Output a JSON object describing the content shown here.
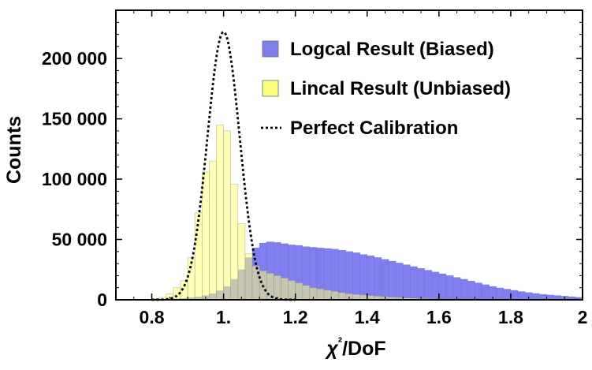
{
  "chart_data": {
    "type": "bar",
    "title": "",
    "xlabel": "χ²/DoF",
    "ylabel": "Counts",
    "xlim": [
      0.7,
      2.0
    ],
    "ylim": [
      0,
      240000
    ],
    "x_ticks": [
      0.8,
      1.0,
      1.2,
      1.4,
      1.6,
      1.8,
      2.0
    ],
    "x_tick_labels": [
      "0.8",
      "1.",
      "1.2",
      "1.4",
      "1.6",
      "1.8",
      "2"
    ],
    "y_ticks": [
      0,
      50000,
      100000,
      150000,
      200000
    ],
    "y_tick_labels": [
      "0",
      "50 000",
      "100 000",
      "150 000",
      "200 000"
    ],
    "bin_width": 0.02,
    "legend_position": "top-right",
    "colors": {
      "logcal": "#7f7fef",
      "lincal": "#ffff7f",
      "perfect": "#000000"
    },
    "series": [
      {
        "name": "Logcal Result (Biased)",
        "kind": "histogram",
        "x": [
          0.85,
          0.87,
          0.89,
          0.91,
          0.93,
          0.95,
          0.97,
          0.99,
          1.01,
          1.03,
          1.05,
          1.07,
          1.09,
          1.11,
          1.13,
          1.15,
          1.17,
          1.19,
          1.21,
          1.23,
          1.25,
          1.27,
          1.29,
          1.31,
          1.33,
          1.35,
          1.37,
          1.39,
          1.41,
          1.43,
          1.45,
          1.47,
          1.49,
          1.51,
          1.53,
          1.55,
          1.57,
          1.59,
          1.61,
          1.63,
          1.65,
          1.67,
          1.69,
          1.71,
          1.73,
          1.75,
          1.77,
          1.79,
          1.81,
          1.83,
          1.85,
          1.87,
          1.89,
          1.91,
          1.93,
          1.95,
          1.97,
          1.99
        ],
        "values": [
          500,
          800,
          1200,
          1800,
          2500,
          3500,
          5000,
          7500,
          11000,
          17000,
          25000,
          35000,
          43000,
          47000,
          48000,
          47500,
          46500,
          45500,
          45000,
          44000,
          43500,
          43000,
          42500,
          42000,
          41000,
          40000,
          39000,
          37500,
          36500,
          35000,
          33500,
          32000,
          30500,
          29000,
          27500,
          26000,
          24500,
          23000,
          21500,
          20000,
          18500,
          17000,
          15500,
          14000,
          12500,
          11000,
          9800,
          8800,
          7800,
          6800,
          6000,
          5200,
          4500,
          4000,
          3500,
          3000,
          2500,
          2000
        ]
      },
      {
        "name": "Lincal Result (Unbiased)",
        "kind": "histogram",
        "x": [
          0.81,
          0.83,
          0.85,
          0.87,
          0.89,
          0.91,
          0.93,
          0.95,
          0.97,
          0.99,
          1.01,
          1.03,
          1.05,
          1.07,
          1.09,
          1.11,
          1.13,
          1.15,
          1.17,
          1.19,
          1.21,
          1.23,
          1.25,
          1.27,
          1.29,
          1.31,
          1.33,
          1.35,
          1.37,
          1.39,
          1.41,
          1.43,
          1.45,
          1.47,
          1.49,
          1.51,
          1.53,
          1.55,
          1.57,
          1.59,
          1.61,
          1.63,
          1.65,
          1.67,
          1.69
        ],
        "values": [
          1000,
          2000,
          5000,
          10000,
          16000,
          35000,
          72000,
          106000,
          115000,
          145000,
          140000,
          96000,
          63000,
          38000,
          28000,
          24000,
          22000,
          20000,
          18000,
          16000,
          14000,
          12000,
          10000,
          9000,
          8000,
          7000,
          6000,
          5000,
          4500,
          4000,
          3500,
          3000,
          2600,
          2200,
          1900,
          1600,
          1400,
          1200,
          1000,
          800,
          600,
          500,
          400,
          300,
          200
        ]
      },
      {
        "name": "Perfect Calibration",
        "kind": "curve",
        "center": 1.0,
        "sigma": 0.045,
        "peak": 222000
      }
    ]
  }
}
